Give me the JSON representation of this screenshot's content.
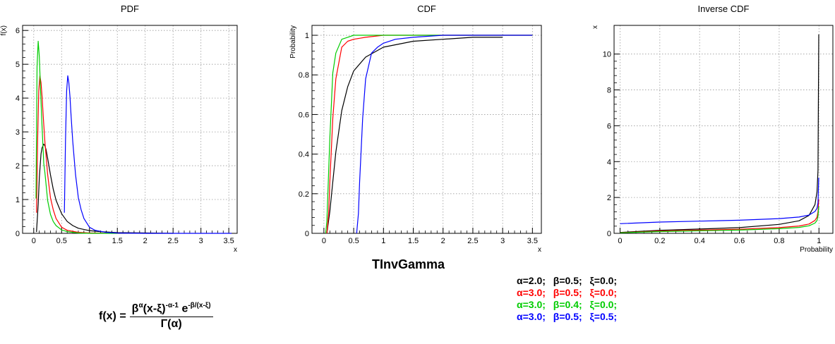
{
  "figure": {
    "main_title": "TInvGamma",
    "formula": {
      "lhs": "f(x) =",
      "num_base": "β",
      "num_base_exp": "α",
      "num_paren": "(x-ξ)",
      "num_paren_exp": "-α-1",
      "num_e": "e",
      "num_e_exp": "-β/(x-ξ)",
      "den": "Γ(α)"
    },
    "legend_rows": [
      {
        "alpha": "α=2.0;",
        "beta": "β=0.5;",
        "xi": "ξ=0.0;",
        "color": "#000000"
      },
      {
        "alpha": "α=3.0;",
        "beta": "β=0.5;",
        "xi": "ξ=0.0;",
        "color": "#ff0000"
      },
      {
        "alpha": "α=3.0;",
        "beta": "β=0.4;",
        "xi": "ξ=0.0;",
        "color": "#00cc00"
      },
      {
        "alpha": "α=3.0;",
        "beta": "β=0.5;",
        "xi": "ξ=0.5;",
        "color": "#0000ff"
      }
    ]
  },
  "chart_data": [
    {
      "type": "line",
      "title": "PDF",
      "xlabel": "x",
      "ylabel": "f(x)",
      "xlim": [
        -0.2,
        3.65
      ],
      "ylim": [
        0,
        6.15
      ],
      "xticks": [
        0,
        0.5,
        1,
        1.5,
        2,
        2.5,
        3,
        3.5
      ],
      "xtick_labels": [
        "0",
        "0.5",
        "1",
        "1.5",
        "2",
        "2.5",
        "3",
        "3.5"
      ],
      "yticks": [
        0,
        1,
        2,
        3,
        4,
        5,
        6
      ],
      "ytick_labels": [
        "0",
        "1",
        "2",
        "3",
        "4",
        "5",
        "6"
      ],
      "grid": true,
      "series": [
        {
          "color": "#000000",
          "x": [
            0.05,
            0.08,
            0.1,
            0.13,
            0.15,
            0.18,
            0.2,
            0.22,
            0.25,
            0.3,
            0.35,
            0.4,
            0.5,
            0.6,
            0.7,
            0.8,
            1.0,
            1.2,
            1.5,
            2.0,
            2.5
          ],
          "y": [
            0.04,
            0.86,
            1.64,
            2.35,
            2.53,
            2.64,
            2.59,
            2.48,
            2.22,
            1.73,
            1.31,
            0.98,
            0.58,
            0.35,
            0.23,
            0.15,
            0.08,
            0.05,
            0.02,
            0.01,
            0.0
          ]
        },
        {
          "color": "#ff0000",
          "x": [
            0.05,
            0.07,
            0.09,
            0.11,
            0.13,
            0.15,
            0.17,
            0.2,
            0.25,
            0.3,
            0.35,
            0.4,
            0.5,
            0.6,
            0.8,
            1.0,
            1.5
          ],
          "y": [
            0.61,
            2.75,
            4.21,
            4.66,
            4.46,
            4.05,
            3.48,
            2.71,
            1.74,
            1.05,
            0.7,
            0.44,
            0.18,
            0.09,
            0.03,
            0.01,
            0.0
          ]
        },
        {
          "color": "#00cc00",
          "x": [
            0.04,
            0.06,
            0.08,
            0.1,
            0.12,
            0.15,
            0.18,
            0.2,
            0.25,
            0.3,
            0.35,
            0.4,
            0.5,
            0.6,
            0.8,
            1.0,
            1.5
          ],
          "y": [
            1.03,
            4.94,
            5.68,
            5.23,
            4.31,
            3.15,
            2.07,
            1.8,
            0.97,
            0.56,
            0.35,
            0.23,
            0.1,
            0.05,
            0.01,
            0.0,
            0.0
          ]
        },
        {
          "color": "#0000ff",
          "x": [
            0.55,
            0.57,
            0.59,
            0.61,
            0.63,
            0.65,
            0.67,
            0.7,
            0.75,
            0.8,
            0.85,
            0.9,
            1.0,
            1.1,
            1.3,
            1.5,
            2.0,
            2.5,
            3.0,
            3.55
          ],
          "y": [
            0.61,
            2.75,
            4.21,
            4.66,
            4.46,
            4.05,
            3.48,
            2.71,
            1.74,
            1.05,
            0.7,
            0.44,
            0.18,
            0.09,
            0.03,
            0.01,
            0.0,
            0.0,
            0.0,
            0.0
          ]
        }
      ]
    },
    {
      "type": "line",
      "title": "CDF",
      "xlabel": "x",
      "ylabel": "Probability",
      "xlim": [
        -0.2,
        3.65
      ],
      "ylim": [
        0,
        1.05
      ],
      "xticks": [
        0,
        0.5,
        1,
        1.5,
        2,
        2.5,
        3,
        3.5
      ],
      "xtick_labels": [
        "0",
        "0.5",
        "1",
        "1.5",
        "2",
        "2.5",
        "3",
        "3.5"
      ],
      "yticks": [
        0,
        0.2,
        0.4,
        0.6,
        0.8,
        1
      ],
      "ytick_labels": [
        "0",
        "0.2",
        "0.4",
        "0.6",
        "0.8",
        "1"
      ],
      "grid": true,
      "series": [
        {
          "color": "#000000",
          "x": [
            0.05,
            0.1,
            0.15,
            0.2,
            0.3,
            0.4,
            0.5,
            0.7,
            1.0,
            1.5,
            2.0,
            2.5,
            3.0
          ],
          "y": [
            0.0,
            0.11,
            0.26,
            0.41,
            0.62,
            0.74,
            0.82,
            0.89,
            0.94,
            0.97,
            0.98,
            0.99,
            0.99
          ]
        },
        {
          "color": "#ff0000",
          "x": [
            0.05,
            0.08,
            0.1,
            0.15,
            0.2,
            0.3,
            0.4,
            0.5,
            0.7,
            1.0,
            1.5,
            2.0,
            2.5,
            3.0,
            3.5
          ],
          "y": [
            0.0,
            0.1,
            0.26,
            0.58,
            0.78,
            0.94,
            0.97,
            0.98,
            0.99,
            1.0,
            1.0,
            1.0,
            1.0,
            1.0,
            1.0
          ]
        },
        {
          "color": "#00cc00",
          "x": [
            0.03,
            0.05,
            0.08,
            0.1,
            0.15,
            0.2,
            0.3,
            0.4,
            0.5,
            0.7,
            1.0,
            1.5,
            2.0,
            2.5,
            3.0,
            3.5
          ],
          "y": [
            0.0,
            0.06,
            0.31,
            0.48,
            0.81,
            0.91,
            0.98,
            0.99,
            1.0,
            1.0,
            1.0,
            1.0,
            1.0,
            1.0,
            1.0,
            1.0
          ]
        },
        {
          "color": "#0000ff",
          "x": [
            0.55,
            0.58,
            0.6,
            0.65,
            0.7,
            0.8,
            0.9,
            1.0,
            1.2,
            1.5,
            2.0,
            2.5,
            3.0,
            3.5
          ],
          "y": [
            0.0,
            0.1,
            0.26,
            0.58,
            0.78,
            0.91,
            0.94,
            0.96,
            0.98,
            0.99,
            1.0,
            1.0,
            1.0,
            1.0
          ]
        }
      ]
    },
    {
      "type": "line",
      "title": "Inverse CDF",
      "xlabel": "Probability",
      "ylabel": "x",
      "xlim": [
        -0.03,
        1.07
      ],
      "ylim": [
        0,
        11.6
      ],
      "xticks": [
        0,
        0.2,
        0.4,
        0.6,
        0.8,
        1
      ],
      "xtick_labels": [
        "0",
        "0.2",
        "0.4",
        "0.6",
        "0.8",
        "1"
      ],
      "yticks": [
        0,
        2,
        4,
        6,
        8,
        10
      ],
      "ytick_labels": [
        "0",
        "2",
        "4",
        "6",
        "8",
        "10"
      ],
      "grid": true,
      "series": [
        {
          "color": "#000000",
          "x": [
            0.0,
            0.2,
            0.4,
            0.6,
            0.8,
            0.9,
            0.95,
            0.98,
            0.99,
            0.995,
            0.999
          ],
          "y": [
            0.05,
            0.17,
            0.24,
            0.32,
            0.5,
            0.7,
            1.0,
            1.6,
            2.3,
            3.5,
            11.1
          ]
        },
        {
          "color": "#ff0000",
          "x": [
            0.0,
            0.2,
            0.4,
            0.6,
            0.8,
            0.9,
            0.95,
            0.98,
            0.99,
            0.995,
            0.999
          ],
          "y": [
            0.04,
            0.13,
            0.18,
            0.23,
            0.32,
            0.41,
            0.52,
            0.72,
            0.9,
            1.2,
            1.9
          ]
        },
        {
          "color": "#00cc00",
          "x": [
            0.0,
            0.2,
            0.4,
            0.6,
            0.8,
            0.9,
            0.95,
            0.98,
            0.99,
            0.995,
            0.999
          ],
          "y": [
            0.03,
            0.1,
            0.14,
            0.18,
            0.26,
            0.33,
            0.42,
            0.57,
            0.72,
            0.96,
            1.5
          ]
        },
        {
          "color": "#0000ff",
          "x": [
            0.0,
            0.2,
            0.4,
            0.6,
            0.8,
            0.9,
            0.95,
            0.98,
            0.99,
            0.995,
            0.999
          ],
          "y": [
            0.54,
            0.63,
            0.68,
            0.73,
            0.82,
            0.91,
            1.02,
            1.22,
            1.4,
            1.7,
            3.1
          ]
        }
      ]
    }
  ]
}
